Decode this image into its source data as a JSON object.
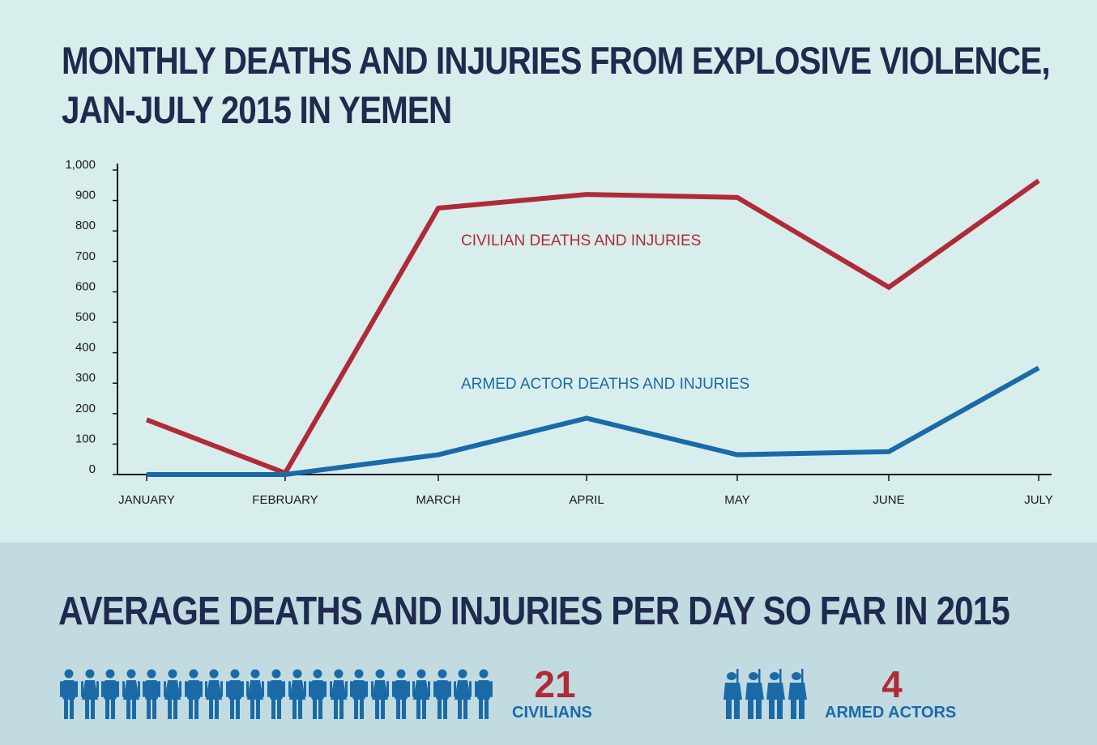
{
  "title_line1": "MONTHLY DEATHS AND INJURIES FROM EXPLOSIVE VIOLENCE,",
  "title_line2": "JAN-JULY 2015 IN YEMEN",
  "chart_data": {
    "type": "line",
    "categories": [
      "JANUARY",
      "FEBRUARY",
      "MARCH",
      "APRIL",
      "MAY",
      "JUNE",
      "JULY"
    ],
    "ylim": [
      0,
      1000
    ],
    "yticks": [
      0,
      100,
      200,
      300,
      400,
      500,
      600,
      700,
      800,
      900,
      1000
    ],
    "ytick_labels": [
      "0",
      "100",
      "200",
      "300",
      "400",
      "500",
      "600",
      "700",
      "800",
      "900",
      "1,000"
    ],
    "grid": false,
    "series": [
      {
        "name": "CIVILIAN DEATHS AND INJURIES",
        "color": "#b02a37",
        "values": [
          180,
          5,
          875,
          920,
          910,
          615,
          965
        ]
      },
      {
        "name": "ARMED ACTOR DEATHS AND INJURIES",
        "color": "#1b6aa8",
        "values": [
          0,
          0,
          65,
          185,
          65,
          75,
          350
        ]
      }
    ]
  },
  "summary": {
    "title": "AVERAGE DEATHS AND INJURIES PER DAY SO FAR IN 2015",
    "civilians": {
      "value": "21",
      "label": "CIVILIANS",
      "icon": "person-icon",
      "count": 21
    },
    "armed": {
      "value": "4",
      "label": "ARMED ACTORS",
      "icon": "soldier-icon",
      "count": 4
    }
  },
  "colors": {
    "title": "#1f2a4e",
    "civilian": "#b02a37",
    "armed": "#1b6aa8",
    "icons": "#1b6aa8"
  }
}
